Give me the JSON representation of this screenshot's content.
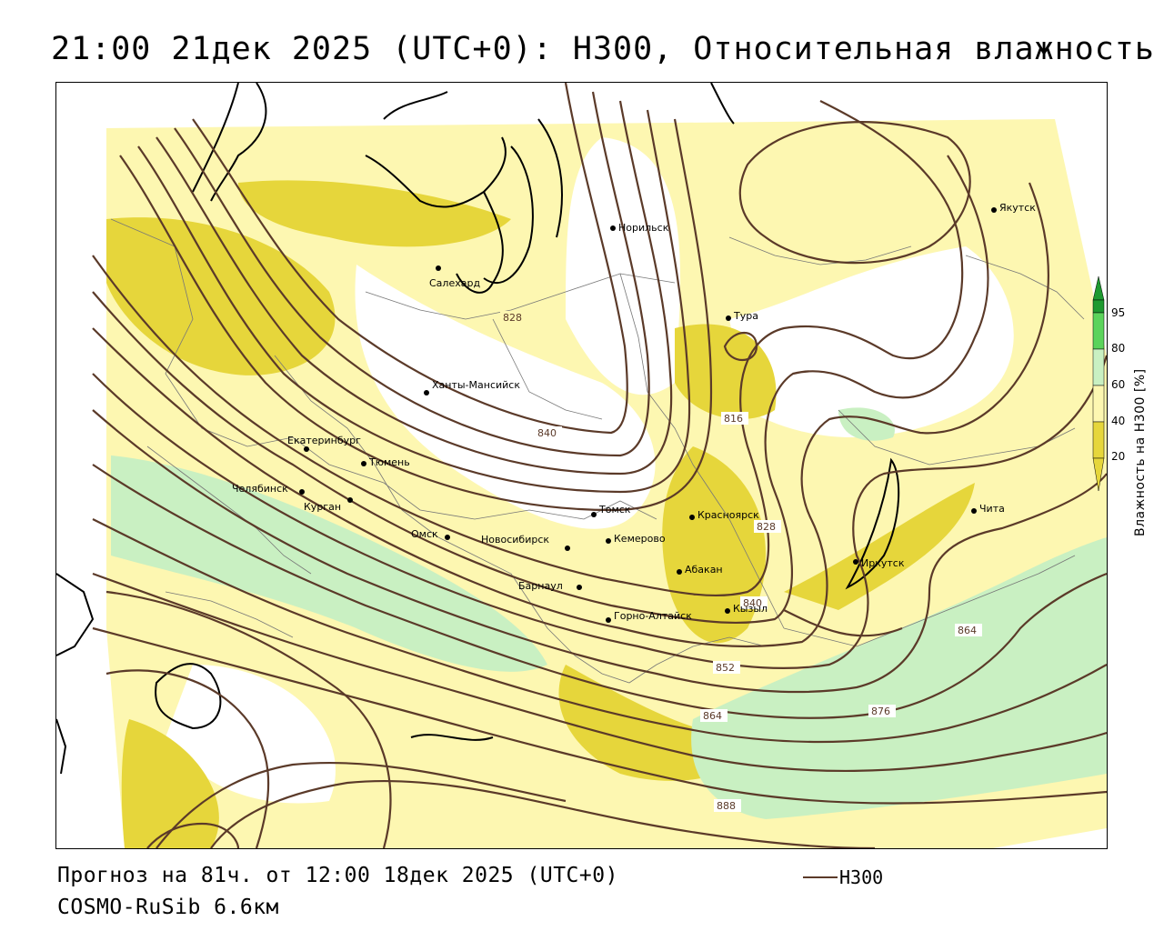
{
  "title": "21:00 21дек 2025 (UTC+0): H300, Относительная влажность",
  "footer": {
    "forecast": "Прогноз на 81ч. от 12:00 18дек 2025 (UTC+0)",
    "model": "COSMO-RuSib 6.6км"
  },
  "legend": {
    "line_label": "H300",
    "line_color": "#5b3a29"
  },
  "colorbar": {
    "title": "Влажность на H300 [%]",
    "ticks": [
      "20",
      "40",
      "60",
      "80",
      "95"
    ],
    "colors": {
      "lt20": "#ffffff",
      "20_40": "#fdf7b1",
      "40_60": "#e6d63b",
      "60_80": "#c9f0c2",
      "80_95": "#5bd35b",
      "gt95": "#1e9a30"
    }
  },
  "cities": [
    {
      "name": "Норильск"
    },
    {
      "name": "Якутск"
    },
    {
      "name": "Салехард"
    },
    {
      "name": "Тура"
    },
    {
      "name": "Ханты-Мансийск"
    },
    {
      "name": "Екатеринбург"
    },
    {
      "name": "Тюмень"
    },
    {
      "name": "Челябинск"
    },
    {
      "name": "Курган"
    },
    {
      "name": "Омск"
    },
    {
      "name": "Томск"
    },
    {
      "name": "Новосибирск"
    },
    {
      "name": "Кемерово"
    },
    {
      "name": "Красноярск"
    },
    {
      "name": "Барнаул"
    },
    {
      "name": "Абакан"
    },
    {
      "name": "Горно-Алтайск"
    },
    {
      "name": "Кызыл"
    },
    {
      "name": "Иркутск"
    },
    {
      "name": "Чита"
    }
  ],
  "contour_labels": [
    "828",
    "840",
    "816",
    "828",
    "840",
    "852",
    "864",
    "864",
    "876",
    "888"
  ]
}
